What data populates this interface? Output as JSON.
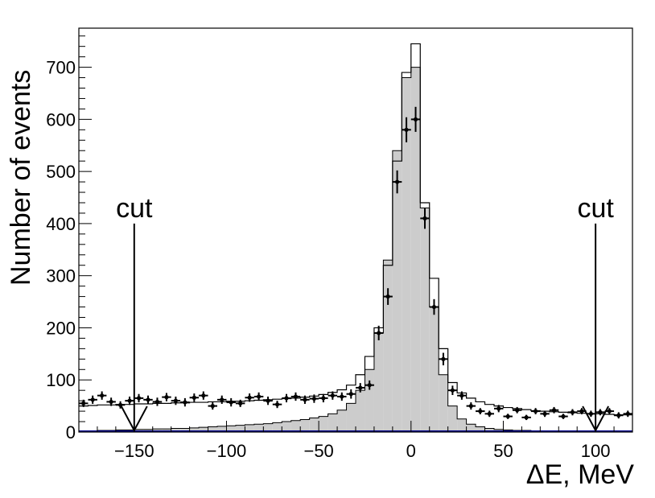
{
  "chart_data": {
    "type": "histogram",
    "xlabel": "ΔE, MeV",
    "ylabel": "Number of events",
    "xlim": [
      -180,
      120
    ],
    "ylim": [
      0,
      775
    ],
    "grid": false,
    "x_ticks": [
      -150,
      -100,
      -50,
      0,
      50,
      100
    ],
    "x_tick_labels": [
      "−150",
      "−100",
      "−50",
      "0",
      "50",
      "100"
    ],
    "y_ticks": [
      0,
      100,
      200,
      300,
      400,
      500,
      600,
      700
    ],
    "y_tick_labels": [
      "0",
      "100",
      "200",
      "300",
      "400",
      "500",
      "600",
      "700"
    ],
    "colors": {
      "signal_fill": "#cccccc",
      "baseline": "#00008b",
      "line": "#000000"
    },
    "annotations": [
      {
        "text": "cut",
        "x": -150,
        "arrow_from_y": 400,
        "arrow_to_y": 0
      },
      {
        "text": "cut",
        "x": 100,
        "arrow_from_y": 400,
        "arrow_to_y": 0
      }
    ],
    "series": [
      {
        "kind": "data_points_with_errors",
        "x": [
          -177.5,
          -172.5,
          -167.5,
          -162.5,
          -157.5,
          -152.5,
          -147.5,
          -142.5,
          -137.5,
          -132.5,
          -127.5,
          -122.5,
          -117.5,
          -112.5,
          -107.5,
          -102.5,
          -97.5,
          -92.5,
          -87.5,
          -82.5,
          -77.5,
          -72.5,
          -67.5,
          -62.5,
          -57.5,
          -52.5,
          -47.5,
          -42.5,
          -37.5,
          -32.5,
          -27.5,
          -22.5,
          -17.5,
          -12.5,
          -7.5,
          -2.5,
          2.5,
          7.5,
          12.5,
          17.5,
          22.5,
          27.5,
          32.5,
          37.5,
          42.5,
          47.5,
          52.5,
          57.5,
          62.5,
          67.5,
          72.5,
          77.5,
          82.5,
          87.5,
          92.5,
          97.5,
          102.5,
          107.5,
          112.5,
          117.5
        ],
        "y": [
          55,
          62,
          70,
          58,
          52,
          60,
          65,
          62,
          58,
          67,
          60,
          57,
          66,
          70,
          50,
          62,
          57,
          55,
          66,
          68,
          60,
          53,
          65,
          68,
          62,
          64,
          65,
          70,
          68,
          73,
          85,
          90,
          190,
          260,
          480,
          580,
          600,
          410,
          240,
          140,
          80,
          70,
          50,
          40,
          35,
          45,
          30,
          42,
          28,
          40,
          35,
          42,
          30,
          38,
          40,
          35,
          38,
          40,
          32,
          35
        ],
        "yerr": [
          7,
          8,
          8,
          8,
          7,
          8,
          8,
          8,
          8,
          8,
          8,
          8,
          8,
          8,
          7,
          8,
          8,
          7,
          8,
          8,
          8,
          7,
          8,
          8,
          8,
          8,
          8,
          8,
          8,
          9,
          9,
          9,
          14,
          16,
          22,
          24,
          24,
          20,
          15,
          12,
          9,
          8,
          7,
          6,
          6,
          7,
          5,
          6,
          5,
          6,
          6,
          6,
          5,
          6,
          6,
          6,
          6,
          6,
          6,
          6
        ],
        "xerr": 2.5
      },
      {
        "kind": "step_open",
        "x": [
          -177.5,
          -172.5,
          -167.5,
          -162.5,
          -157.5,
          -152.5,
          -147.5,
          -142.5,
          -137.5,
          -132.5,
          -127.5,
          -122.5,
          -117.5,
          -112.5,
          -107.5,
          -102.5,
          -97.5,
          -92.5,
          -87.5,
          -82.5,
          -77.5,
          -72.5,
          -67.5,
          -62.5,
          -57.5,
          -52.5,
          -47.5,
          -42.5,
          -37.5,
          -32.5,
          -27.5,
          -22.5,
          -17.5,
          -12.5,
          -7.5,
          -2.5,
          2.5,
          7.5,
          12.5,
          17.5,
          22.5,
          27.5,
          32.5,
          37.5,
          42.5,
          47.5,
          52.5,
          57.5,
          62.5,
          67.5,
          72.5,
          77.5,
          82.5,
          87.5,
          92.5,
          97.5,
          102.5,
          107.5,
          112.5,
          117.5
        ],
        "y": [
          50,
          51,
          52,
          52,
          53,
          53,
          54,
          54,
          55,
          55,
          56,
          56,
          57,
          57,
          58,
          58,
          59,
          59,
          60,
          61,
          62,
          63,
          64,
          65,
          67,
          69,
          72,
          76,
          81,
          90,
          110,
          145,
          200,
          320,
          520,
          690,
          745,
          440,
          295,
          160,
          95,
          75,
          65,
          58,
          53,
          50,
          47,
          45,
          43,
          41,
          40,
          39,
          38,
          37,
          36,
          35,
          35,
          34,
          33,
          33
        ]
      },
      {
        "kind": "step_filled",
        "x": [
          -177.5,
          -172.5,
          -167.5,
          -162.5,
          -157.5,
          -152.5,
          -147.5,
          -142.5,
          -137.5,
          -132.5,
          -127.5,
          -122.5,
          -117.5,
          -112.5,
          -107.5,
          -102.5,
          -97.5,
          -92.5,
          -87.5,
          -82.5,
          -77.5,
          -72.5,
          -67.5,
          -62.5,
          -57.5,
          -52.5,
          -47.5,
          -42.5,
          -37.5,
          -32.5,
          -27.5,
          -22.5,
          -17.5,
          -12.5,
          -7.5,
          -2.5,
          2.5,
          7.5,
          12.5,
          17.5,
          22.5,
          27.5,
          32.5,
          37.5,
          42.5,
          47.5,
          52.5,
          57.5,
          62.5,
          67.5,
          72.5,
          77.5,
          82.5,
          87.5,
          92.5,
          97.5,
          102.5,
          107.5,
          112.5,
          117.5
        ],
        "y": [
          2,
          2,
          3,
          3,
          4,
          4,
          5,
          5,
          6,
          6,
          7,
          7,
          8,
          9,
          10,
          11,
          12,
          13,
          14,
          15,
          16,
          18,
          20,
          22,
          24,
          27,
          30,
          35,
          42,
          55,
          80,
          120,
          190,
          330,
          540,
          680,
          700,
          430,
          240,
          110,
          50,
          25,
          15,
          10,
          7,
          5,
          4,
          3,
          3,
          2,
          2,
          2,
          1,
          1,
          1,
          1,
          1,
          1,
          1,
          1
        ]
      }
    ]
  }
}
